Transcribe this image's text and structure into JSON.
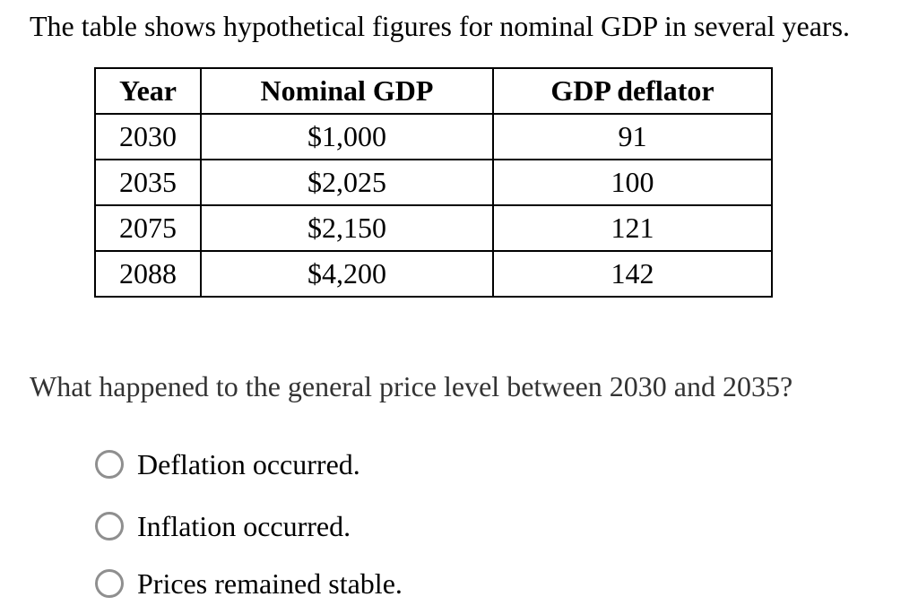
{
  "intro": {
    "text": "The table shows hypothetical figures for nominal GDP in several years."
  },
  "table": {
    "headers": [
      "Year",
      "Nominal GDP",
      "GDP deflator"
    ],
    "rows": [
      [
        "2030",
        "$1,000",
        "91"
      ],
      [
        "2035",
        "$2,025",
        "100"
      ],
      [
        "2075",
        "$2,150",
        "121"
      ],
      [
        "2088",
        "$4,200",
        "142"
      ]
    ]
  },
  "question": {
    "text": "What happened to the general price level between 2030 and 2035?"
  },
  "options": [
    {
      "label": "Deflation occurred.",
      "selected": false
    },
    {
      "label": "Inflation occurred.",
      "selected": false
    },
    {
      "label": "Prices remained stable.",
      "selected": false
    }
  ],
  "colors": {
    "body_text": "#000000",
    "question_text": "#333333",
    "radio_border": "#8f8f8f",
    "table_border": "#000000",
    "page_bg": "#ffffff"
  }
}
